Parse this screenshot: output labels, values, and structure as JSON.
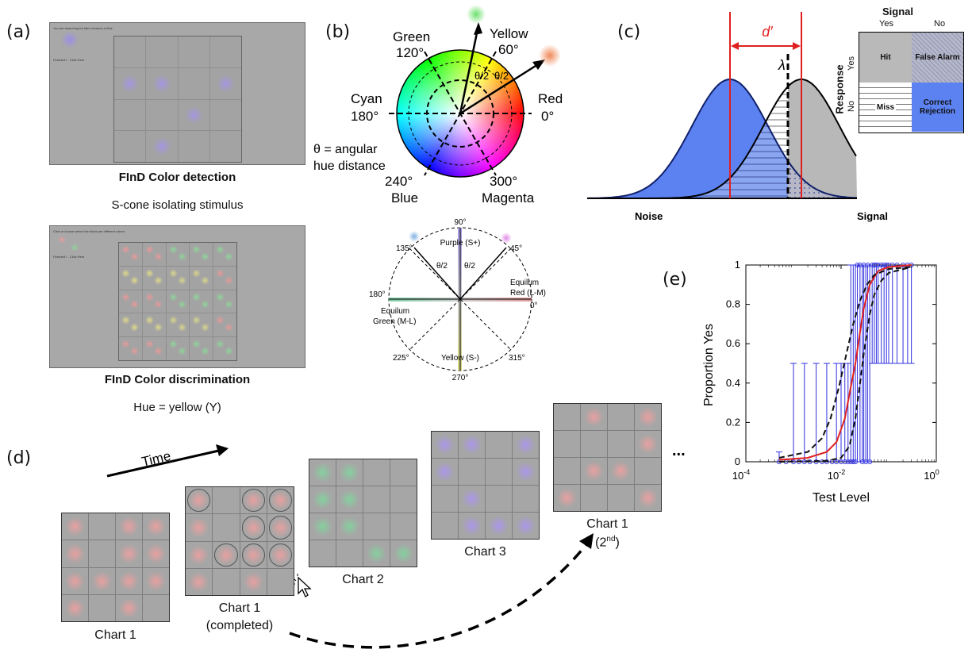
{
  "panels": {
    "a": "(a)",
    "b": "(b)",
    "c": "(c)",
    "d": "(d)",
    "e": "(e)"
  },
  "panel_a": {
    "detection": {
      "screen_text": "You are searching for faint versions of this:",
      "finished_text": "Finished? - Click Here",
      "title": "FInD Color detection",
      "subtitle": "S-cone isolating stimulus"
    },
    "discrimination": {
      "screen_text": "Click or tocuse where the blobs are different colors:",
      "finished_text": "Finished? - Click Here",
      "title": "FInD Color discrimination",
      "subtitle": "Hue = yellow (Y)"
    }
  },
  "panel_b": {
    "wheel": {
      "labels": {
        "green": "Green",
        "green_deg": "120°",
        "yellow": "Yellow",
        "yellow_deg": "60°",
        "cyan": "Cyan",
        "cyan_deg": "180°",
        "red": "Red",
        "red_deg": "0°",
        "blue_deg": "240°",
        "blue": "Blue",
        "magenta_deg": "300°",
        "magenta": "Magenta",
        "half_theta": "θ/2"
      },
      "note_line1": "θ = angular",
      "note_line2": "hue distance"
    },
    "dkl": {
      "deg90": "90°",
      "purple": "Purple (S+)",
      "deg135": "135°",
      "deg45": "45°",
      "deg180": "180°",
      "deg0": "0°",
      "equilum_red_1": "Equilum",
      "equilum_red_2": "Red (L-M)",
      "equilum_green_1": "Equilum",
      "equilum_green_2": "Green (M-L)",
      "deg225": "225°",
      "deg315": "315°",
      "yellow": "Yellow (S-)",
      "deg270": "270°",
      "half_theta": "θ/2"
    }
  },
  "panel_c": {
    "dprime": "d′",
    "lambda": "λ",
    "noise": "Noise",
    "signal": "Signal",
    "table": {
      "signal_header": "Signal",
      "response_header": "Response",
      "yes": "Yes",
      "no": "No",
      "hit": "Hit",
      "false_alarm": "False Alarm",
      "miss": "Miss",
      "correct_rejection": "Correct Rejection"
    },
    "colors": {
      "noise": "#5b82f0",
      "signal": "#b8b8b8",
      "criterion": "#e02020"
    }
  },
  "panel_d": {
    "time": "Time",
    "ellipsis": "...",
    "charts": [
      {
        "label": "Chart 1",
        "sub": ""
      },
      {
        "label": "Chart 1",
        "sub": "(completed)"
      },
      {
        "label": "Chart 2",
        "sub": ""
      },
      {
        "label": "Chart 3",
        "sub": ""
      },
      {
        "label": "Chart 1",
        "sub": "(2nd)"
      }
    ]
  },
  "chart_data": {
    "type": "scatter",
    "title": "",
    "xlabel": "Test Level",
    "ylabel": "Proportion Yes",
    "xscale": "log",
    "xlim": [
      0.0001,
      1
    ],
    "ylim": [
      0,
      1
    ],
    "xticks": [
      "10^-4",
      "10^-2",
      "10^0"
    ],
    "yticks": [
      "0",
      "0.2",
      "0.4",
      "0.6",
      "0.8",
      "1"
    ],
    "series": [
      {
        "style": "points",
        "color": "#3030e0",
        "x": [
          0.0005,
          0.0007,
          0.001,
          0.0013,
          0.0017,
          0.0022,
          0.003,
          0.004,
          0.005,
          0.0065,
          0.008,
          0.01,
          0.012,
          0.014,
          0.016,
          0.018,
          0.02,
          0.022,
          0.025,
          0.028,
          0.03,
          0.033,
          0.036,
          0.04,
          0.045,
          0.05,
          0.055,
          0.06,
          0.07,
          0.08,
          0.09,
          0.1,
          0.12,
          0.15,
          0.2,
          0.25,
          0.3
        ],
        "y": [
          0,
          0,
          0,
          0,
          0,
          0,
          0,
          0,
          0,
          0,
          0,
          0,
          0,
          0,
          0,
          0,
          0,
          1,
          1,
          0,
          1,
          0,
          1,
          0,
          1,
          1,
          1,
          1,
          1,
          1,
          1,
          1,
          1,
          1,
          1,
          1,
          1
        ],
        "err_up": [
          0.05,
          0,
          0.5,
          0,
          0.5,
          0,
          0.5,
          0,
          0.5,
          0,
          0.5,
          0.5,
          0.5,
          0.5,
          1,
          1,
          1,
          1,
          1,
          1,
          1,
          1,
          1,
          1,
          0.5,
          0.5,
          0.5,
          0.5,
          0.5,
          0.5,
          0.5,
          0.5,
          0.5,
          0.5,
          0.5,
          0.5,
          0.5
        ]
      },
      {
        "style": "fit",
        "color": "#e02020",
        "x": [
          0.0005,
          0.002,
          0.005,
          0.008,
          0.012,
          0.016,
          0.02,
          0.025,
          0.03,
          0.04,
          0.06,
          0.1,
          0.3
        ],
        "y": [
          0.01,
          0.02,
          0.05,
          0.1,
          0.22,
          0.38,
          0.5,
          0.66,
          0.78,
          0.9,
          0.97,
          0.99,
          1.0
        ]
      },
      {
        "style": "ci",
        "color": "#111111",
        "x": [
          0.0005,
          0.002,
          0.004,
          0.006,
          0.009,
          0.013,
          0.018,
          0.025,
          0.035,
          0.05,
          0.1,
          0.3
        ],
        "y": [
          0.02,
          0.05,
          0.12,
          0.22,
          0.38,
          0.55,
          0.7,
          0.82,
          0.9,
          0.95,
          0.98,
          0.99
        ]
      },
      {
        "style": "ci",
        "color": "#111111",
        "x": [
          0.0005,
          0.005,
          0.01,
          0.015,
          0.02,
          0.025,
          0.03,
          0.04,
          0.05,
          0.07,
          0.1,
          0.3
        ],
        "y": [
          0,
          0.005,
          0.02,
          0.08,
          0.22,
          0.4,
          0.55,
          0.75,
          0.85,
          0.92,
          0.96,
          0.99
        ]
      }
    ]
  }
}
